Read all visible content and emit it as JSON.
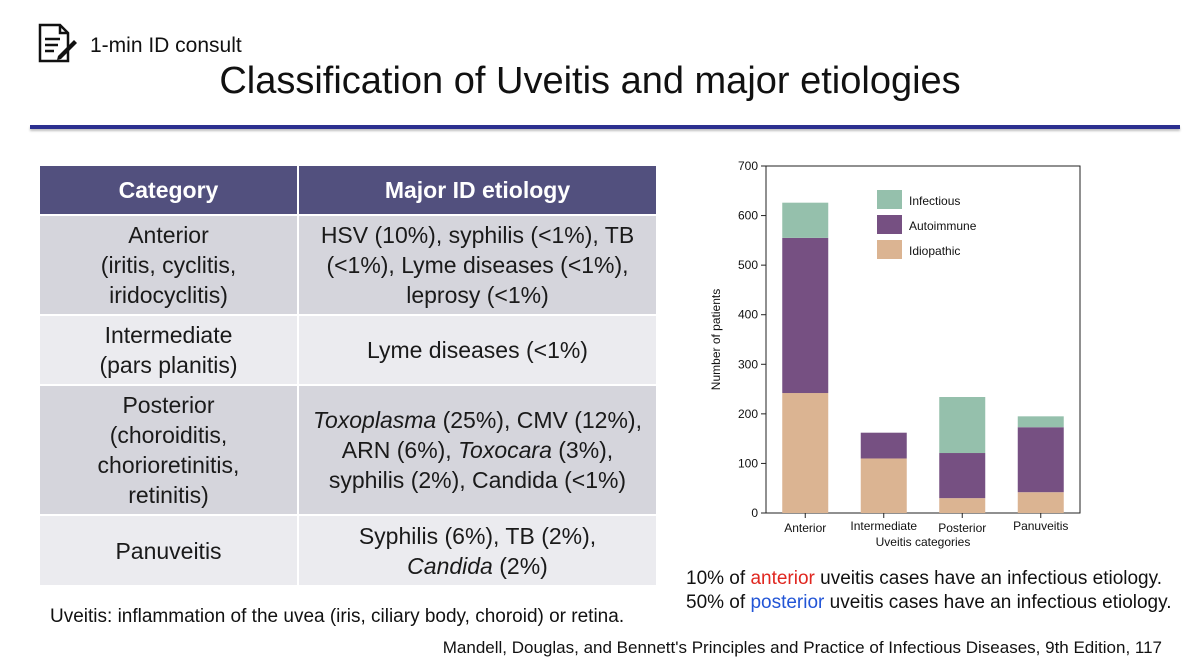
{
  "header": {
    "consult_label": "1-min ID consult",
    "title": "Classification of Uveitis and major etiologies"
  },
  "icons": {
    "header_icon": "document-edit-icon"
  },
  "table": {
    "headers": [
      "Category",
      "Major ID etiology"
    ],
    "rows": [
      {
        "category": "Anterior\n(iritis, cyclitis,\niridocyclitis)",
        "etiology": "HSV (10%), syphilis (<1%), TB\n(<1%), Lyme diseases (<1%),\nleprosy (<1%)"
      },
      {
        "category": "Intermediate\n(pars planitis)",
        "etiology": "Lyme diseases (<1%)"
      },
      {
        "category": "Posterior\n(choroiditis,\nchorioretinitis,\nretinitis)",
        "etiology_parts": {
          "t1": "Toxoplasma",
          "t2": " (25%), CMV (12%),",
          "t3": "ARN (6%), ",
          "t4": "Toxocara",
          "t5": " (3%),",
          "t6": "syphilis (2%), Candida (<1%)"
        }
      },
      {
        "category": "Panuveitis",
        "etiology_parts": {
          "t1": "Syphilis (6%), TB (2%),",
          "t2": "Candida",
          "t3": " (2%)"
        }
      }
    ],
    "header_color": "#52507e"
  },
  "footnotes": {
    "definition": "Uveitis: inflammation of the uvea (iris, ciliary body, choroid) or retina.",
    "stat1": {
      "prefix": "10% of ",
      "highlight": "anterior",
      "suffix": " uveitis cases have an infectious etiology."
    },
    "stat2": {
      "prefix": "50% of ",
      "highlight": "posterior",
      "suffix": " uveitis cases have an infectious etiology."
    },
    "citation": "Mandell, Douglas, and Bennett's Principles and Practice of Infectious Diseases, 9th Edition, 117"
  },
  "chart_data": {
    "type": "bar",
    "stacked": true,
    "categories": [
      "Anterior",
      "Intermediate",
      "Posterior",
      "Panuveitis"
    ],
    "series": [
      {
        "name": "Idiopathic",
        "values": [
          242,
          110,
          30,
          42
        ],
        "color": "#dbb492"
      },
      {
        "name": "Autoimmune",
        "values": [
          313,
          52,
          91,
          131
        ],
        "color": "#765082"
      },
      {
        "name": "Infectious",
        "values": [
          71,
          0,
          113,
          22
        ],
        "color": "#95c0ac"
      }
    ],
    "xlabel": "Uveitis categories",
    "ylabel": "Number of patients",
    "ylim": [
      0,
      700
    ],
    "yticks": [
      0,
      100,
      200,
      300,
      400,
      500,
      600,
      700
    ],
    "legend_order": [
      "Infectious",
      "Autoimmune",
      "Idiopathic"
    ],
    "legend_position": "top-right",
    "grid": false
  }
}
